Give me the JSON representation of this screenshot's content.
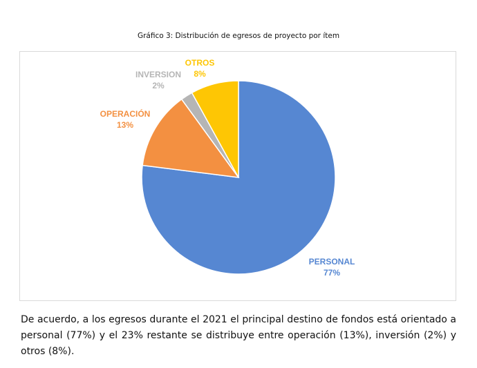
{
  "caption": "Gráfico 3: Distribución de egresos de proyecto por ítem",
  "chart_data": {
    "type": "pie",
    "title": "",
    "slices": [
      {
        "name": "PERSONAL",
        "label": "77%",
        "value": 77,
        "color": "#5687d2"
      },
      {
        "name": "OPERACIÓN",
        "label": "13%",
        "value": 13,
        "color": "#f39041"
      },
      {
        "name": "INVERSION",
        "label": "2%",
        "value": 2,
        "color": "#b5b5b5"
      },
      {
        "name": "OTROS",
        "label": "8%",
        "value": 8,
        "color": "#fec604"
      }
    ],
    "slice_order": "clockwise from top: PERSONAL, OPERACIÓN, INVERSION, OTROS",
    "legend": "none"
  },
  "paragraph": "De acuerdo, a los egresos durante el 2021 el principal destino de fondos está orientado a personal (77%) y el 23% restante se distribuye entre operación (13%), inversión (2%) y otros (8%)."
}
